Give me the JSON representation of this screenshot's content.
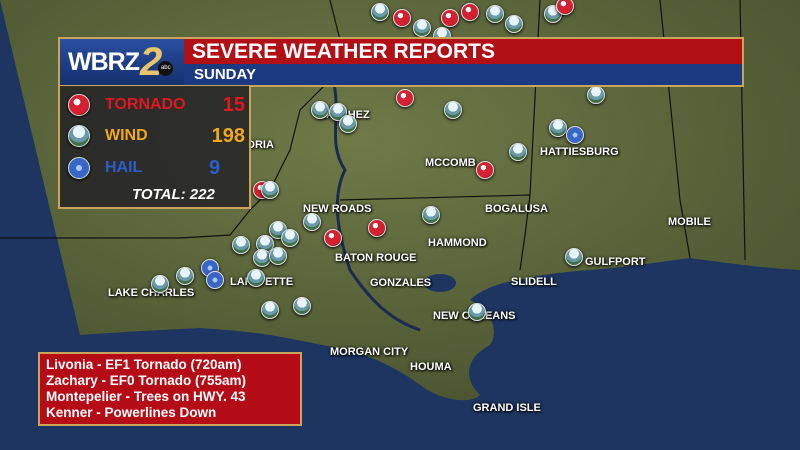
{
  "header": {
    "logo": "WBRZ",
    "logo_number": "2",
    "network": "abc",
    "title": "SEVERE WEATHER REPORTS",
    "subtitle": "SUNDAY"
  },
  "stats": {
    "items": [
      {
        "label": "TORNADO",
        "value": "15",
        "color": "#e01820",
        "icon": "tornado-icon"
      },
      {
        "label": "WIND",
        "value": "198",
        "color": "#f0a81c",
        "icon": "wind-icon"
      },
      {
        "label": "HAIL",
        "value": "9",
        "color": "#2e5cc8",
        "icon": "hail-icon"
      }
    ],
    "total": "TOTAL: 222"
  },
  "cities": [
    "NATCHEZ",
    "DRIA",
    "MCCOMB",
    "HATTIESBURG",
    "NEW ROADS",
    "BOGALUSA",
    "MOBILE",
    "HAMMOND",
    "BATON ROUGE",
    "GULFPORT",
    "SLIDELL",
    "LAKE CHARLES",
    "LAFAYETTE",
    "GONZALES",
    "NEW ORLEANS",
    "MORGAN CITY",
    "HOUMA",
    "GRAND ISLE"
  ],
  "notes": [
    "Livonia - EF1 Tornado (720am)",
    "Zachary - EF0 Tornado (755am)",
    "Montepelier -  Trees on HWY. 43",
    "Kenner - Powerlines Down"
  ],
  "colors": {
    "header_red": "#b01016",
    "header_blue": "#1c3a82",
    "border_gold": "#c9a45a",
    "land": "#5e6a3c",
    "water": "#1d3560"
  }
}
